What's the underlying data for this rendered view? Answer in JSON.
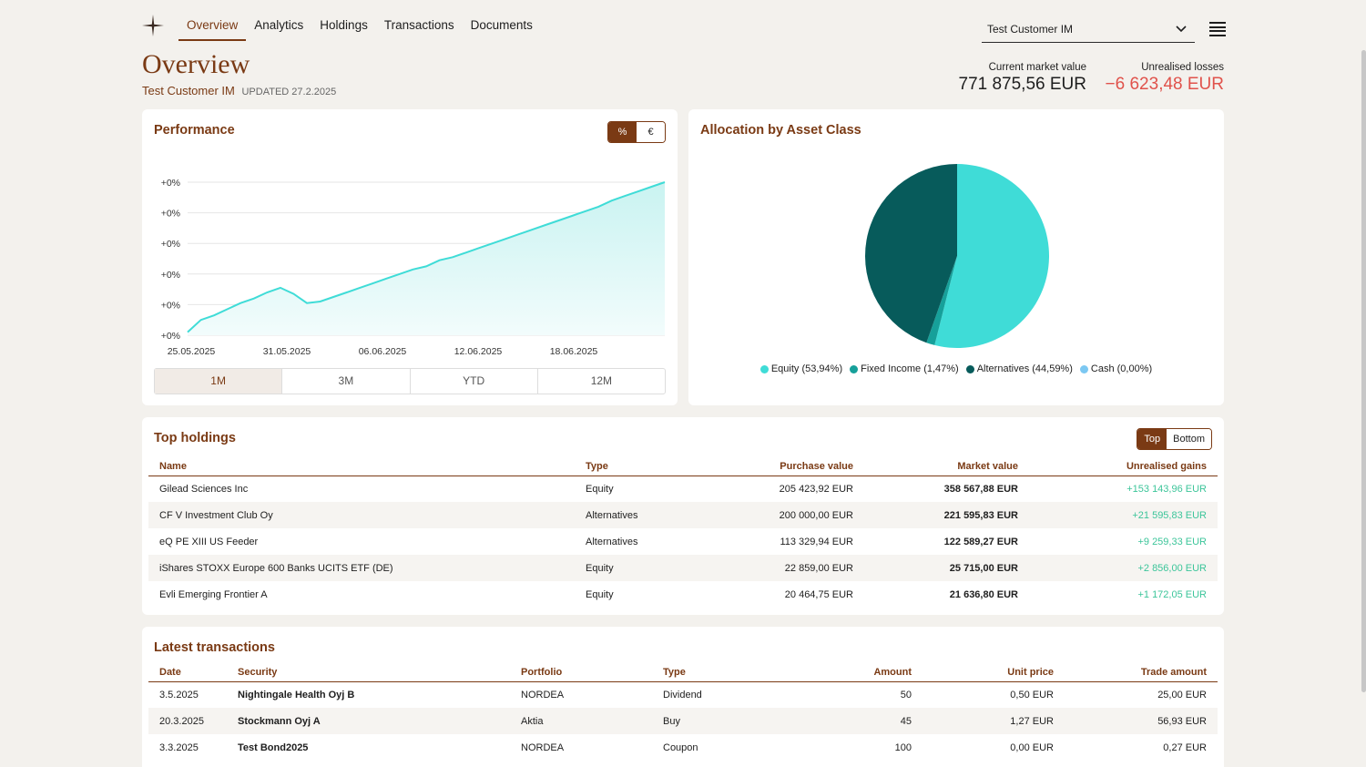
{
  "nav": {
    "items": [
      {
        "label": "Overview",
        "active": true
      },
      {
        "label": "Analytics",
        "active": false
      },
      {
        "label": "Holdings",
        "active": false
      },
      {
        "label": "Transactions",
        "active": false
      },
      {
        "label": "Documents",
        "active": false
      }
    ],
    "customer_select": "Test Customer IM"
  },
  "header": {
    "title": "Overview",
    "customer": "Test Customer IM",
    "updated": "UPDATED 27.2.2025",
    "market_value_label": "Current market value",
    "market_value": "771 875,56 EUR",
    "unrealised_label": "Unrealised losses",
    "unrealised": "−6 623,48 EUR"
  },
  "performance": {
    "title": "Performance",
    "unit_toggle": [
      "%",
      "€"
    ],
    "unit_selected": "%",
    "ranges": [
      "1M",
      "3M",
      "YTD",
      "12M"
    ],
    "range_selected": "1M"
  },
  "chart_data": [
    {
      "type": "area",
      "title": "Performance",
      "x_tick_labels": [
        "25.05.2025",
        "31.05.2025",
        "06.06.2025",
        "12.06.2025",
        "18.06.2025"
      ],
      "y_tick_labels": [
        "+0%",
        "+0%",
        "+0%",
        "+0%",
        "+0%",
        "+0%"
      ],
      "y_relative": [
        0.02,
        0.1,
        0.13,
        0.17,
        0.21,
        0.24,
        0.28,
        0.31,
        0.27,
        0.21,
        0.22,
        0.25,
        0.28,
        0.31,
        0.34,
        0.37,
        0.4,
        0.43,
        0.45,
        0.49,
        0.51,
        0.54,
        0.57,
        0.6,
        0.63,
        0.66,
        0.69,
        0.72,
        0.75,
        0.78,
        0.81,
        0.84,
        0.88,
        0.91,
        0.94,
        0.97,
        1.0
      ],
      "colors": {
        "line": "#3fdcd7",
        "fill_top": "#c9f3f1",
        "fill_bottom": "#f2fcfc"
      }
    },
    {
      "type": "pie",
      "title": "Allocation by Asset Class",
      "slices": [
        {
          "label": "Equity (53,94%)",
          "value": 53.94,
          "color": "#3fdcd7"
        },
        {
          "label": "Fixed Income (1,47%)",
          "value": 1.47,
          "color": "#16a09a"
        },
        {
          "label": "Alternatives (44,59%)",
          "value": 44.59,
          "color": "#075b5b"
        },
        {
          "label": "Cash (0,00%)",
          "value": 0.0,
          "color": "#7cc8f2"
        }
      ]
    }
  ],
  "holdings": {
    "title": "Top holdings",
    "toggle": [
      "Top",
      "Bottom"
    ],
    "toggle_selected": "Top",
    "columns": [
      "Name",
      "Type",
      "Purchase value",
      "Market value",
      "Unrealised gains"
    ],
    "rows": [
      [
        "Gilead Sciences Inc",
        "Equity",
        "205 423,92 EUR",
        "358 567,88 EUR",
        "+153 143,96 EUR"
      ],
      [
        "CF V Investment Club Oy",
        "Alternatives",
        "200 000,00 EUR",
        "221 595,83 EUR",
        "+21 595,83 EUR"
      ],
      [
        "eQ PE XIII US Feeder",
        "Alternatives",
        "113 329,94 EUR",
        "122 589,27 EUR",
        "+9 259,33 EUR"
      ],
      [
        "iShares STOXX Europe 600 Banks UCITS ETF (DE)",
        "Equity",
        "22 859,00 EUR",
        "25 715,00 EUR",
        "+2 856,00 EUR"
      ],
      [
        "Evli Emerging Frontier A",
        "Equity",
        "20 464,75 EUR",
        "21 636,80 EUR",
        "+1 172,05 EUR"
      ]
    ]
  },
  "transactions": {
    "title": "Latest transactions",
    "columns": [
      "Date",
      "Security",
      "Portfolio",
      "Type",
      "Amount",
      "Unit price",
      "Trade amount"
    ],
    "rows": [
      [
        "3.5.2025",
        "Nightingale Health Oyj B",
        "NORDEA",
        "Dividend",
        "50",
        "0,50 EUR",
        "25,00 EUR"
      ],
      [
        "20.3.2025",
        "Stockmann Oyj A",
        "Aktia",
        "Buy",
        "45",
        "1,27 EUR",
        "56,93 EUR"
      ],
      [
        "3.3.2025",
        "Test Bond2025",
        "NORDEA",
        "Coupon",
        "100",
        "0,00 EUR",
        "0,27 EUR"
      ]
    ]
  },
  "allocation": {
    "title": "Allocation by Asset Class"
  }
}
